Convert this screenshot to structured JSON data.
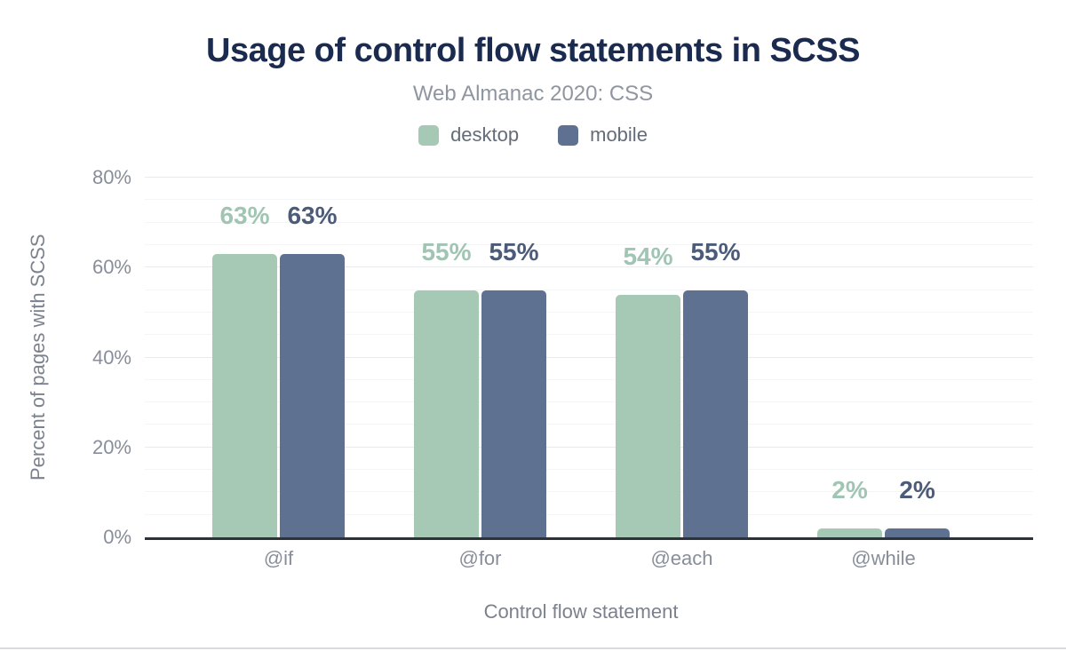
{
  "chart_data": {
    "type": "bar",
    "title": "Usage of control flow statements in SCSS",
    "subtitle": "Web Almanac 2020: CSS",
    "xlabel": "Control flow statement",
    "ylabel": "Percent of pages with SCSS",
    "categories": [
      "@if",
      "@for",
      "@each",
      "@while"
    ],
    "series": [
      {
        "name": "desktop",
        "color": "#a6c9b6",
        "label_color": "#a0c5b2",
        "values": [
          63,
          55,
          54,
          2
        ],
        "labels": [
          "63%",
          "55%",
          "54%",
          "2%"
        ]
      },
      {
        "name": "mobile",
        "color": "#5f7190",
        "label_color": "#4b5b79",
        "values": [
          63,
          55,
          55,
          2
        ],
        "labels": [
          "63%",
          "55%",
          "55%",
          "2%"
        ]
      }
    ],
    "ylim": [
      0,
      80
    ],
    "yticks": [
      0,
      20,
      40,
      60,
      80
    ],
    "ytick_labels": [
      "0%",
      "20%",
      "40%",
      "60%",
      "80%"
    ],
    "minor_grid_step": 5,
    "grid": true,
    "legend_position": "top",
    "colors": {
      "title": "#1b2b4f",
      "subtitle": "#8f96a1",
      "legend_text": "#646c78",
      "axis_title": "#7b828d",
      "tick_label": "#878e99",
      "baseline": "#2d3138",
      "grid_major": "#e8eaec",
      "grid_minor": "#f4f5f6",
      "bottom_divider": "#d7dade"
    }
  }
}
